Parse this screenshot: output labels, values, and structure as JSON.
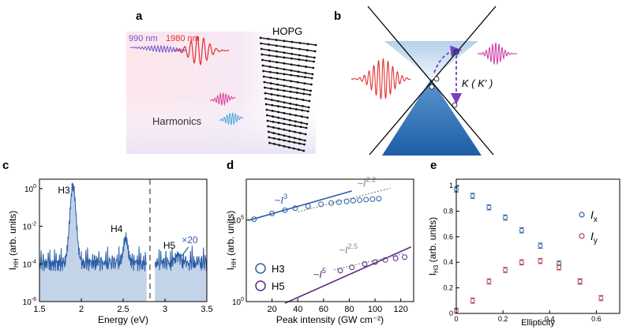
{
  "panel_labels": {
    "a": "a",
    "b": "b",
    "c": "c",
    "d": "d",
    "e": "e"
  },
  "panel_a": {
    "label_990": "990 nm",
    "label_1980": "1980 nm",
    "label_hopg": "HOPG",
    "label_harmonics": "Harmonics",
    "colors": {
      "pump990": "#6a5acd",
      "pump1980": "#e03030",
      "harm_pink": "#e0409a",
      "harm_blue": "#4aa8e0"
    }
  },
  "panel_b": {
    "valley_label": "K ( K′ )",
    "colors": {
      "cone": "#3b7dc0",
      "laser_in": "#e03030",
      "laser_out": "#d040a8",
      "arrow": "#7b3fbf"
    }
  },
  "chart_data": [
    {
      "type": "line",
      "panel": "c",
      "title": "",
      "xlabel": "Energy (eV)",
      "ylabel": "I_HH (arb. units)",
      "ylabel_main": "I",
      "ylabel_sub": "HH",
      "ylabel_rest": " (arb. units)",
      "xlim": [
        1.5,
        3.5
      ],
      "ylim_log10": [
        -6,
        0.5
      ],
      "xticks": [
        "1.5",
        "2",
        "2.5",
        "3",
        "3.5"
      ],
      "yticks": [
        {
          "base": "10",
          "exp": "0",
          "v": 0
        },
        {
          "base": "10",
          "exp": "-2",
          "v": -2
        },
        {
          "base": "10",
          "exp": "-4",
          "v": -4
        },
        {
          "base": "10",
          "exp": "-6",
          "v": -6
        }
      ],
      "annotations": {
        "h3": "H3",
        "h4": "H4",
        "h5": "H5",
        "scale": "×20"
      },
      "divider_x": 2.82,
      "peaks_log10": [
        {
          "name": "H3",
          "x": 1.9,
          "sigma": 0.055,
          "log_amp": 0.15
        },
        {
          "name": "H4",
          "x": 2.53,
          "sigma": 0.04,
          "log_amp": -2.6
        },
        {
          "name": "H5",
          "x": 3.15,
          "sigma": 0.05,
          "log_amp": -3.6
        }
      ],
      "baseline_log10": -4.1,
      "color": "#2b5ea7",
      "fill": "#c3d3e8"
    },
    {
      "type": "scatter",
      "panel": "d",
      "xlabel": "Peak intensity (GW cm⁻²)",
      "ylabel": "I_HH (arb. units)",
      "ylabel_main": "I",
      "ylabel_sub": "HH",
      "ylabel_rest": " (arb. units)",
      "xlim": [
        0,
        130
      ],
      "ylim_log10": [
        0,
        7.5
      ],
      "xticks": [
        {
          "label": "20",
          "v": 20
        },
        {
          "label": "40",
          "v": 40
        },
        {
          "label": "60",
          "v": 60
        },
        {
          "label": "80",
          "v": 80
        },
        {
          "label": "100",
          "v": 100
        },
        {
          "label": "120",
          "v": 120
        }
      ],
      "yticks": [
        {
          "base": "10",
          "exp": "5",
          "v": 5
        },
        {
          "base": "10",
          "exp": "0",
          "v": 0
        }
      ],
      "legend": [
        {
          "name": "H3",
          "color": "#2b5ea7"
        },
        {
          "name": "H5",
          "color": "#5a2a82"
        }
      ],
      "series": [
        {
          "name": "H3",
          "color": "#2b5ea7",
          "x": [
            6,
            20,
            30,
            38,
            48,
            58,
            66,
            72,
            78,
            83,
            88,
            93,
            98,
            103
          ],
          "y_log10": [
            5.05,
            5.4,
            5.6,
            5.72,
            5.85,
            5.96,
            6.04,
            6.09,
            6.14,
            6.18,
            6.22,
            6.25,
            6.28,
            6.31
          ]
        },
        {
          "name": "H5",
          "color": "#5a2a82",
          "x": [
            73,
            82,
            92,
            100,
            108,
            116,
            123
          ],
          "y_log10": [
            1.9,
            2.1,
            2.3,
            2.42,
            2.55,
            2.65,
            2.72
          ]
        }
      ],
      "fits": [
        {
          "label_main": "~I",
          "label_exp": "3",
          "color": "#2b5ea7",
          "x": [
            2,
            82
          ],
          "y_log10": [
            4.98,
            6.78
          ],
          "label_at": [
            22,
            6.0
          ]
        },
        {
          "label_main": "~I",
          "label_exp": "2.2",
          "color": "#888888",
          "dashed": true,
          "x": [
            40,
            112
          ],
          "y_log10": [
            5.5,
            6.95
          ],
          "label_at": [
            86,
            7.05
          ]
        },
        {
          "label_main": "~I",
          "label_exp": "5",
          "color": "#5a2a82",
          "x": [
            30,
            128
          ],
          "y_log10": [
            -0.1,
            3.35
          ],
          "label_at": [
            52,
            1.45
          ]
        },
        {
          "label_main": "~I",
          "label_exp": "2.5",
          "color": "#888888",
          "dashed": true,
          "x": [
            68,
            123
          ],
          "y_log10": [
            1.95,
            2.95
          ],
          "label_at": [
            72,
            2.95
          ]
        }
      ]
    },
    {
      "type": "scatter",
      "panel": "e",
      "xlabel": "Ellipticity",
      "ylabel": "I_H3 (arb. units)",
      "ylabel_main": "I",
      "ylabel_sub": "H3",
      "ylabel_rest": " (arb. units)",
      "xlim": [
        0,
        0.7
      ],
      "ylim": [
        0,
        1.05
      ],
      "xticks": [
        {
          "label": "0",
          "v": 0
        },
        {
          "label": "0.2",
          "v": 0.2
        },
        {
          "label": "0.4",
          "v": 0.4
        },
        {
          "label": "0.6",
          "v": 0.6
        }
      ],
      "yticks": [
        {
          "label": "0",
          "v": 0
        },
        {
          "label": "0.2",
          "v": 0.2
        },
        {
          "label": "0.4",
          "v": 0.4
        },
        {
          "label": "0.6",
          "v": 0.6
        },
        {
          "label": "0.8",
          "v": 0.8
        },
        {
          "label": "1",
          "v": 1
        }
      ],
      "legend": [
        {
          "name_main": "I",
          "name_sub": "x",
          "color": "#2b5ea7"
        },
        {
          "name_main": "I",
          "name_sub": "y",
          "color": "#b03a4a"
        }
      ],
      "series": [
        {
          "name": "Ix",
          "color": "#2b5ea7",
          "x": [
            0,
            0.07,
            0.14,
            0.21,
            0.28,
            0.36,
            0.44,
            0.53
          ],
          "y": [
            0.97,
            0.92,
            0.83,
            0.75,
            0.65,
            0.53,
            0.39,
            0.25
          ],
          "err": [
            0.02,
            0.02,
            0.02,
            0.02,
            0.02,
            0.02,
            0.02,
            0.02
          ]
        },
        {
          "name": "Iy",
          "color": "#b03a4a",
          "x": [
            0,
            0.07,
            0.14,
            0.21,
            0.28,
            0.36,
            0.44,
            0.53,
            0.62
          ],
          "y": [
            0.02,
            0.1,
            0.25,
            0.34,
            0.4,
            0.41,
            0.36,
            0.25,
            0.12
          ],
          "err": [
            0.02,
            0.02,
            0.02,
            0.02,
            0.02,
            0.02,
            0.02,
            0.02,
            0.02
          ]
        }
      ]
    }
  ]
}
